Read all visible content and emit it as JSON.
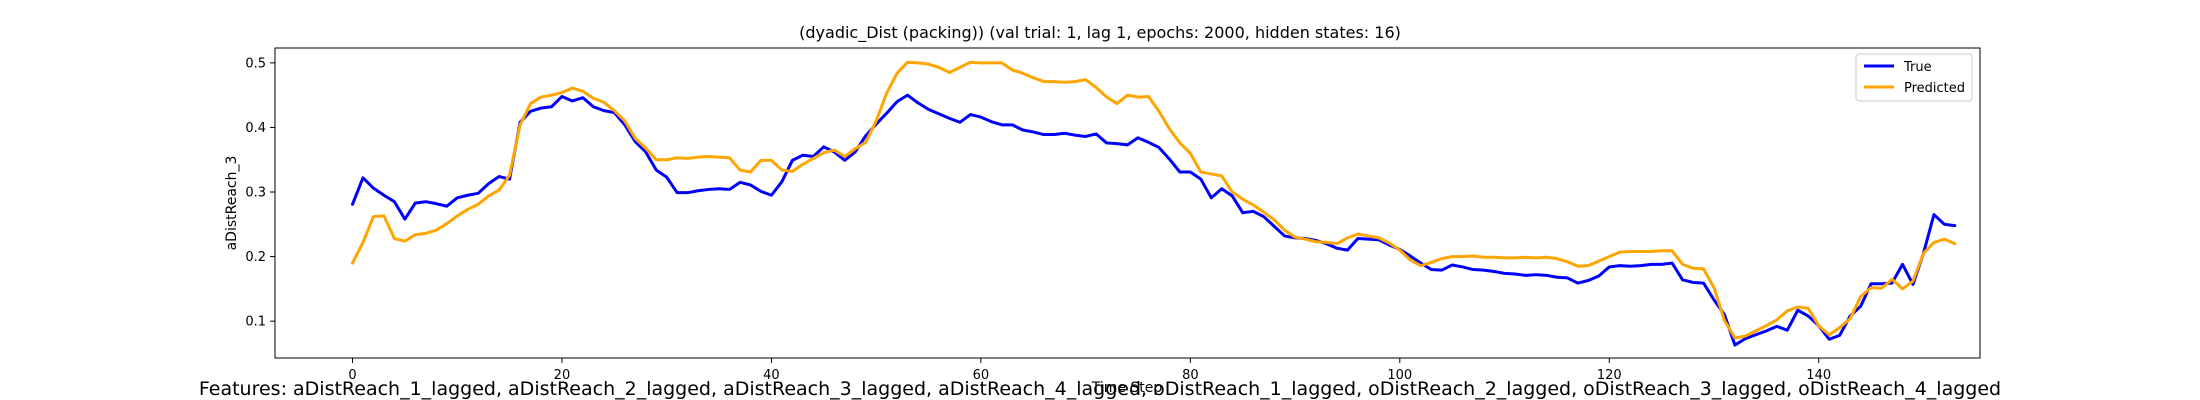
{
  "chart_data": {
    "type": "line",
    "title": "(dyadic_Dist (packing)) (val trial: 1, lag 1, epochs: 2000, hidden states: 16)",
    "xlabel": "Time Step",
    "ylabel": "aDistReach_3",
    "xlim": [
      -7.4,
      155.4
    ],
    "ylim": [
      0.043,
      0.523
    ],
    "xticks": [
      0,
      20,
      40,
      60,
      80,
      100,
      120,
      140
    ],
    "yticks": [
      0.1,
      0.2,
      0.3,
      0.4,
      0.5
    ],
    "grid": false,
    "legend_position": "upper right",
    "series": [
      {
        "name": "True",
        "color": "#0000ff",
        "values": [
          0.281,
          0.322,
          0.306,
          0.295,
          0.285,
          0.258,
          0.283,
          0.285,
          0.282,
          0.278,
          0.291,
          0.295,
          0.298,
          0.313,
          0.324,
          0.32,
          0.408,
          0.425,
          0.43,
          0.432,
          0.448,
          0.441,
          0.446,
          0.432,
          0.426,
          0.423,
          0.404,
          0.378,
          0.362,
          0.334,
          0.323,
          0.299,
          0.299,
          0.302,
          0.304,
          0.305,
          0.304,
          0.315,
          0.311,
          0.301,
          0.295,
          0.316,
          0.349,
          0.357,
          0.355,
          0.37,
          0.362,
          0.349,
          0.362,
          0.387,
          0.405,
          0.422,
          0.44,
          0.45,
          0.438,
          0.428,
          0.421,
          0.414,
          0.408,
          0.42,
          0.416,
          0.409,
          0.404,
          0.404,
          0.396,
          0.393,
          0.389,
          0.389,
          0.391,
          0.388,
          0.386,
          0.39,
          0.376,
          0.375,
          0.373,
          0.384,
          0.377,
          0.369,
          0.351,
          0.331,
          0.331,
          0.32,
          0.291,
          0.305,
          0.294,
          0.268,
          0.27,
          0.262,
          0.247,
          0.232,
          0.229,
          0.228,
          0.225,
          0.22,
          0.213,
          0.21,
          0.228,
          0.227,
          0.226,
          0.218,
          0.211,
          0.201,
          0.19,
          0.18,
          0.179,
          0.187,
          0.184,
          0.18,
          0.179,
          0.177,
          0.174,
          0.173,
          0.171,
          0.172,
          0.171,
          0.168,
          0.167,
          0.159,
          0.163,
          0.17,
          0.184,
          0.186,
          0.185,
          0.186,
          0.188,
          0.188,
          0.19,
          0.164,
          0.16,
          0.159,
          0.133,
          0.11,
          0.063,
          0.073,
          0.079,
          0.085,
          0.092,
          0.086,
          0.117,
          0.108,
          0.093,
          0.072,
          0.078,
          0.108,
          0.123,
          0.158,
          0.158,
          0.159,
          0.188,
          0.157,
          0.205,
          0.265,
          0.25,
          0.248
        ]
      },
      {
        "name": "Predicted",
        "color": "#ffa500",
        "values": [
          0.19,
          0.222,
          0.262,
          0.263,
          0.228,
          0.224,
          0.234,
          0.236,
          0.241,
          0.251,
          0.263,
          0.273,
          0.281,
          0.294,
          0.303,
          0.326,
          0.404,
          0.437,
          0.447,
          0.45,
          0.454,
          0.461,
          0.456,
          0.445,
          0.439,
          0.426,
          0.41,
          0.383,
          0.368,
          0.35,
          0.35,
          0.353,
          0.352,
          0.354,
          0.355,
          0.354,
          0.353,
          0.334,
          0.331,
          0.349,
          0.349,
          0.334,
          0.332,
          0.343,
          0.352,
          0.361,
          0.365,
          0.355,
          0.367,
          0.377,
          0.41,
          0.453,
          0.484,
          0.501,
          0.5,
          0.498,
          0.493,
          0.485,
          0.493,
          0.501,
          0.5,
          0.5,
          0.5,
          0.489,
          0.484,
          0.477,
          0.471,
          0.471,
          0.47,
          0.471,
          0.474,
          0.462,
          0.447,
          0.437,
          0.45,
          0.447,
          0.448,
          0.425,
          0.398,
          0.376,
          0.36,
          0.331,
          0.328,
          0.325,
          0.3,
          0.289,
          0.28,
          0.269,
          0.257,
          0.241,
          0.23,
          0.227,
          0.223,
          0.222,
          0.22,
          0.229,
          0.235,
          0.232,
          0.229,
          0.221,
          0.21,
          0.195,
          0.186,
          0.191,
          0.197,
          0.2,
          0.2,
          0.201,
          0.199,
          0.199,
          0.198,
          0.198,
          0.199,
          0.198,
          0.199,
          0.197,
          0.192,
          0.185,
          0.186,
          0.193,
          0.2,
          0.207,
          0.208,
          0.208,
          0.208,
          0.209,
          0.209,
          0.188,
          0.182,
          0.181,
          0.152,
          0.101,
          0.074,
          0.077,
          0.085,
          0.093,
          0.102,
          0.116,
          0.122,
          0.12,
          0.093,
          0.079,
          0.09,
          0.104,
          0.138,
          0.152,
          0.151,
          0.165,
          0.15,
          0.162,
          0.205,
          0.222,
          0.227,
          0.22
        ]
      }
    ]
  },
  "footer": {
    "features_text": "Features: aDistReach_1_lagged, aDistReach_2_lagged, aDistReach_3_lagged, aDistReach_4_lagged, oDistReach_1_lagged, oDistReach_2_lagged, oDistReach_3_lagged, oDistReach_4_lagged"
  }
}
